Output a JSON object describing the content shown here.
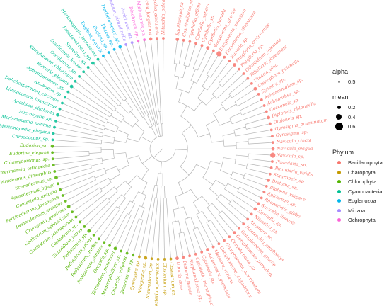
{
  "legend": {
    "alpha": {
      "title": "alpha",
      "items": [
        {
          "label": "0.5"
        }
      ]
    },
    "mean": {
      "title": "mean",
      "items": [
        {
          "label": "0.2",
          "value": 0.2
        },
        {
          "label": "0.4",
          "value": 0.4
        },
        {
          "label": "0.6",
          "value": 0.6
        }
      ]
    },
    "phylum": {
      "title": "Phylum",
      "items": [
        {
          "label": "Bacillariophyta",
          "color": "#F8766D"
        },
        {
          "label": "Charophyta",
          "color": "#C49A00"
        },
        {
          "label": "Chlorophyta",
          "color": "#53B400"
        },
        {
          "label": "Cyanobacteria",
          "color": "#00C094"
        },
        {
          "label": "Euglenozoa",
          "color": "#00B6EB"
        },
        {
          "label": "Miozoa",
          "color": "#A58AFF"
        },
        {
          "label": "Ochrophyta",
          "color": "#FB61D7"
        }
      ]
    }
  },
  "tree": {
    "leaves": [
      {
        "name": "Bacillariophyta",
        "phylum": "Bacillariophyta"
      },
      {
        "name": "Coscinodiscus_sp.",
        "phylum": "Bacillariophyta"
      },
      {
        "name": "Cymbella_affinis",
        "phylum": "Bacillariophyta"
      },
      {
        "name": "Cymbella_aspera",
        "phylum": "Bacillariophyta"
      },
      {
        "name": "Cymbella_sp.",
        "phylum": "Bacillariophyta"
      },
      {
        "name": "Cymbella_tumida",
        "phylum": "Bacillariophyta"
      },
      {
        "name": "Encyonema_gracile",
        "phylum": "Bacillariophyta"
      },
      {
        "name": "Encyonema_minutum",
        "phylum": "Bacillariophyta"
      },
      {
        "name": "Encyonema_silesiacum",
        "phylum": "Bacillariophyta"
      },
      {
        "name": "Eunotia_sp.",
        "phylum": "Bacillariophyta"
      },
      {
        "name": "Fragilaria_crotonensis",
        "phylum": "Bacillariophyta"
      },
      {
        "name": "Fragilaria_sp.",
        "phylum": "Bacillariophyta"
      },
      {
        "name": "Odontidium_hyemale",
        "phylum": "Bacillariophyta"
      },
      {
        "name": "Tabellaria_fenestrata",
        "phylum": "Bacillariophyta"
      },
      {
        "name": "Ulnaria_ulna",
        "phylum": "Bacillariophyta"
      },
      {
        "name": "Ctenophora_pulchella",
        "phylum": "Bacillariophyta"
      },
      {
        "name": "Synedra_sp.",
        "phylum": "Bacillariophyta"
      },
      {
        "name": "Achnanthidium_sp.",
        "phylum": "Bacillariophyta"
      },
      {
        "name": "Achnanthes_sp.",
        "phylum": "Bacillariophyta"
      },
      {
        "name": "Cocconeis_sp.",
        "phylum": "Bacillariophyta"
      },
      {
        "name": "Diploneis_oblongella",
        "phylum": "Bacillariophyta"
      },
      {
        "name": "Diploneis_sp.",
        "phylum": "Bacillariophyta"
      },
      {
        "name": "Gyrosigma_acuminatum",
        "phylum": "Bacillariophyta"
      },
      {
        "name": "Gyrosigma_sp.",
        "phylum": "Bacillariophyta"
      },
      {
        "name": "Navicula_cincta",
        "phylum": "Bacillariophyta"
      },
      {
        "name": "Navicula_exigua",
        "phylum": "Bacillariophyta"
      },
      {
        "name": "Navicula_sp.",
        "phylum": "Bacillariophyta"
      },
      {
        "name": "Pinnularia_sp.",
        "phylum": "Bacillariophyta"
      },
      {
        "name": "Pinnularia_viridis",
        "phylum": "Bacillariophyta"
      },
      {
        "name": "Stauroneis_sp.",
        "phylum": "Bacillariophyta"
      },
      {
        "name": "Diatoma_sp.",
        "phylum": "Bacillariophyta"
      },
      {
        "name": "Diatoma_vulgare",
        "phylum": "Bacillariophyta"
      },
      {
        "name": "Epithemia_sp.",
        "phylum": "Bacillariophyta"
      },
      {
        "name": "Rhopalodia_gibba",
        "phylum": "Bacillariophyta"
      },
      {
        "name": "Surirella_linearis",
        "phylum": "Bacillariophyta"
      },
      {
        "name": "Surirella_sp.",
        "phylum": "Bacillariophyta"
      },
      {
        "name": "Nitzschia_sp.",
        "phylum": "Bacillariophyta"
      },
      {
        "name": "Amphora_sp.",
        "phylum": "Bacillariophyta"
      },
      {
        "name": "Hantzschia_amphioxys",
        "phylum": "Bacillariophyta"
      },
      {
        "name": "Gomphonema_gracile",
        "phylum": "Bacillariophyta"
      },
      {
        "name": "Gomphonema_parvulum",
        "phylum": "Bacillariophyta"
      },
      {
        "name": "Gomphonema_sp.",
        "phylum": "Bacillariophyta"
      },
      {
        "name": "Gomphonema_acuminatum",
        "phylum": "Bacillariophyta"
      },
      {
        "name": "Gomphonema_angustatum",
        "phylum": "Bacillariophyta"
      },
      {
        "name": "Melosira_varians",
        "phylum": "Bacillariophyta"
      },
      {
        "name": "Aulacoseira_granulata",
        "phylum": "Bacillariophyta"
      },
      {
        "name": "Cyclotella_sp.",
        "phylum": "Bacillariophyta"
      },
      {
        "name": "Cyclotella_meneghiniana",
        "phylum": "Bacillariophyta"
      },
      {
        "name": "Stephanodiscus_sp.",
        "phylum": "Bacillariophyta"
      },
      {
        "name": "Diatoma_tenuis",
        "phylum": "Bacillariophyta"
      },
      {
        "name": "Ulnaria_acus",
        "phylum": "Bacillariophyta"
      },
      {
        "name": "Cosmarium_sp.",
        "phylum": "Charophyta"
      },
      {
        "name": "Closterium_sp.",
        "phylum": "Charophyta"
      },
      {
        "name": "Closterium_acerosum",
        "phylum": "Charophyta"
      },
      {
        "name": "Staurastrum_sp.",
        "phylum": "Charophyta"
      },
      {
        "name": "Mougeotia_sp.",
        "phylum": "Charophyta"
      },
      {
        "name": "Spirogyra_sp.",
        "phylum": "Charophyta"
      },
      {
        "name": "Selenastrum_sp.",
        "phylum": "Chlorophyta"
      },
      {
        "name": "Chlorella_vulgaris",
        "phylum": "Chlorophyta"
      },
      {
        "name": "Monoraphidium_sp.",
        "phylum": "Chlorophyta"
      },
      {
        "name": "Tetraedron_minimum",
        "phylum": "Chlorophyta"
      },
      {
        "name": "Oocystis_sp.",
        "phylum": "Chlorophyta"
      },
      {
        "name": "Pediastrum_simplex",
        "phylum": "Chlorophyta"
      },
      {
        "name": "Pediastrum_duplex",
        "phylum": "Chlorophyta"
      },
      {
        "name": "Pediastrum_tetras",
        "phylum": "Chlorophyta"
      },
      {
        "name": "Pediastrum_sp.",
        "phylum": "Chlorophyta"
      },
      {
        "name": "Stauridium_tetras",
        "phylum": "Chlorophyta"
      },
      {
        "name": "Coelastrum_sp.",
        "phylum": "Chlorophyta"
      },
      {
        "name": "Coelastrum_microporum",
        "phylum": "Chlorophyta"
      },
      {
        "name": "Coelastrum_sphaericum",
        "phylum": "Chlorophyta"
      },
      {
        "name": "Crucigenia_quadrata",
        "phylum": "Chlorophyta"
      },
      {
        "name": "Desmodesmus_armatus",
        "phylum": "Chlorophyta"
      },
      {
        "name": "Pectinodesmus_javanensis",
        "phylum": "Chlorophyta"
      },
      {
        "name": "Comasiella_arcuata",
        "phylum": "Chlorophyta"
      },
      {
        "name": "Scenedesmus_bijuga",
        "phylum": "Chlorophyta"
      },
      {
        "name": "Scenedesmus_sp.",
        "phylum": "Chlorophyta"
      },
      {
        "name": "Tetradesmus_dimorphus",
        "phylum": "Chlorophyta"
      },
      {
        "name": "Lemmermannia_tetrapedia",
        "phylum": "Chlorophyta"
      },
      {
        "name": "Chlamydomonas_sp.",
        "phylum": "Chlorophyta"
      },
      {
        "name": "Eudorina_elegans",
        "phylum": "Chlorophyta"
      },
      {
        "name": "Eudorina_sp.",
        "phylum": "Chlorophyta"
      },
      {
        "name": "Chroococcus_sp.",
        "phylum": "Cyanobacteria"
      },
      {
        "name": "Merismopedia_elegans",
        "phylum": "Cyanobacteria"
      },
      {
        "name": "Merismopedia_minima",
        "phylum": "Cyanobacteria"
      },
      {
        "name": "Microcystis_sp.",
        "phylum": "Cyanobacteria"
      },
      {
        "name": "Anathece_clathrata",
        "phylum": "Cyanobacteria"
      },
      {
        "name": "Limnococcus_limneticus",
        "phylum": "Cyanobacteria"
      },
      {
        "name": "Dolichospermum_circinale",
        "phylum": "Cyanobacteria"
      },
      {
        "name": "Anabaena_sp.",
        "phylum": "Cyanobacteria"
      },
      {
        "name": "Aphanizomenon_sp.",
        "phylum": "Cyanobacteria"
      },
      {
        "name": "Romeria_elegans",
        "phylum": "Cyanobacteria"
      },
      {
        "name": "Kamptonema_chlorinum",
        "phylum": "Cyanobacteria"
      },
      {
        "name": "Oscillatoria_sp.",
        "phylum": "Cyanobacteria"
      },
      {
        "name": "Oscillatoria_limosa",
        "phylum": "Cyanobacteria"
      },
      {
        "name": "Spirulina_sp.",
        "phylum": "Cyanobacteria"
      },
      {
        "name": "Pseudanabaena_sp.",
        "phylum": "Cyanobacteria"
      },
      {
        "name": "Merismopedia_tenuissima",
        "phylum": "Cyanobacteria"
      },
      {
        "name": "Euglena_oxyuris",
        "phylum": "Euglenozoa"
      },
      {
        "name": "Euglena_sp.",
        "phylum": "Euglenozoa"
      },
      {
        "name": "Phacus_sp.",
        "phylum": "Euglenozoa"
      },
      {
        "name": "Trachelomonas_sp.",
        "phylum": "Euglenozoa"
      },
      {
        "name": "Ceratium_hirundinella",
        "phylum": "Miozoa"
      },
      {
        "name": "Peridinium_sp.",
        "phylum": "Miozoa"
      },
      {
        "name": "Dinobryon_sp.",
        "phylum": "Ochrophyta"
      },
      {
        "name": "Mallomonas_sp.",
        "phylum": "Ochrophyta"
      },
      {
        "name": "Nitzschia_longissima",
        "phylum": "Bacillariophyta"
      },
      {
        "name": "Nitzschia_acicularis",
        "phylum": "Bacillariophyta"
      },
      {
        "name": "Nitzschia_palea",
        "phylum": "Bacillariophyta"
      }
    ]
  }
}
